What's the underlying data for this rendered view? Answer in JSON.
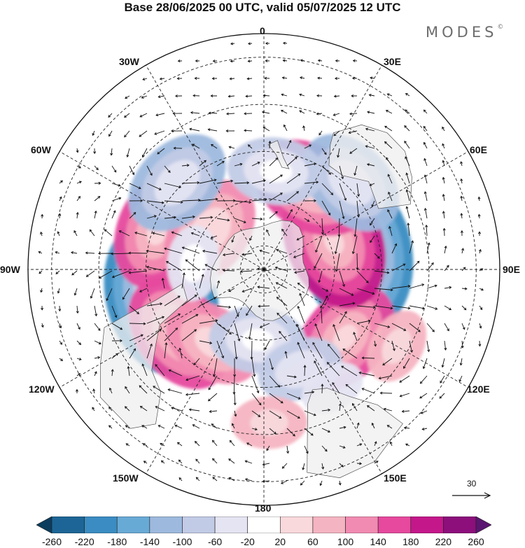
{
  "title": "Base 28/06/2025 00 UTC, valid 05/07/2025 12 UTC",
  "brand": {
    "name": "MODES",
    "mark": "©"
  },
  "longitude_labels": {
    "l0": "0",
    "l30e": "30E",
    "l60e": "60E",
    "l90e": "90E",
    "l120e": "120E",
    "l150e": "150E",
    "l180": "180",
    "l150w": "150W",
    "l120w": "120W",
    "l90w": "90W",
    "l60w": "60W",
    "l30w": "30W"
  },
  "reference_vector": {
    "label": "30"
  },
  "colorbar": {
    "labels": [
      "-260",
      "-220",
      "-180",
      "-140",
      "-100",
      "-60",
      "-20",
      "20",
      "60",
      "100",
      "140",
      "180",
      "220",
      "260"
    ],
    "colors": [
      "#0b3d5e",
      "#1d6596",
      "#3a8cc2",
      "#68aad6",
      "#9db9de",
      "#c2cbe6",
      "#e4e4f2",
      "#ffffff",
      "#f9d9dc",
      "#f5b4c1",
      "#f28bb1",
      "#e6499d",
      "#c4178a",
      "#8c0f7c",
      "#5a1670"
    ]
  },
  "map_style": {
    "land_color": "#efefef",
    "grid_color": "#222222",
    "arrow_color": "#111111"
  },
  "anomaly_centers": [
    {
      "lon": -75,
      "lat": -45,
      "value": -220
    },
    {
      "lon": 100,
      "lat": -50,
      "value": -220
    },
    {
      "lon": -53,
      "lat": -45,
      "value": 150
    },
    {
      "lon": -35,
      "lat": -52,
      "value": 110
    },
    {
      "lon": 50,
      "lat": -45,
      "value": 140
    },
    {
      "lon": 112,
      "lat": -58,
      "value": 180
    },
    {
      "lon": 150,
      "lat": -50,
      "value": 150
    },
    {
      "lon": -110,
      "lat": -42,
      "value": 140
    },
    {
      "lon": -125,
      "lat": -62,
      "value": 130
    },
    {
      "lon": -135,
      "lat": -38,
      "value": -130
    },
    {
      "lon": 135,
      "lat": -38,
      "value": -130
    },
    {
      "lon": 173,
      "lat": -48,
      "value": -100
    },
    {
      "lon": -5,
      "lat": -60,
      "value": -100
    },
    {
      "lon": 20,
      "lat": -45,
      "value": -80
    },
    {
      "lon": 2,
      "lat": -25,
      "value": 60
    },
    {
      "lon": -95,
      "lat": -60,
      "value": -60
    },
    {
      "lon": 30,
      "lat": -32,
      "value": -40
    },
    {
      "lon": 60,
      "lat": -25,
      "value": 60
    }
  ]
}
